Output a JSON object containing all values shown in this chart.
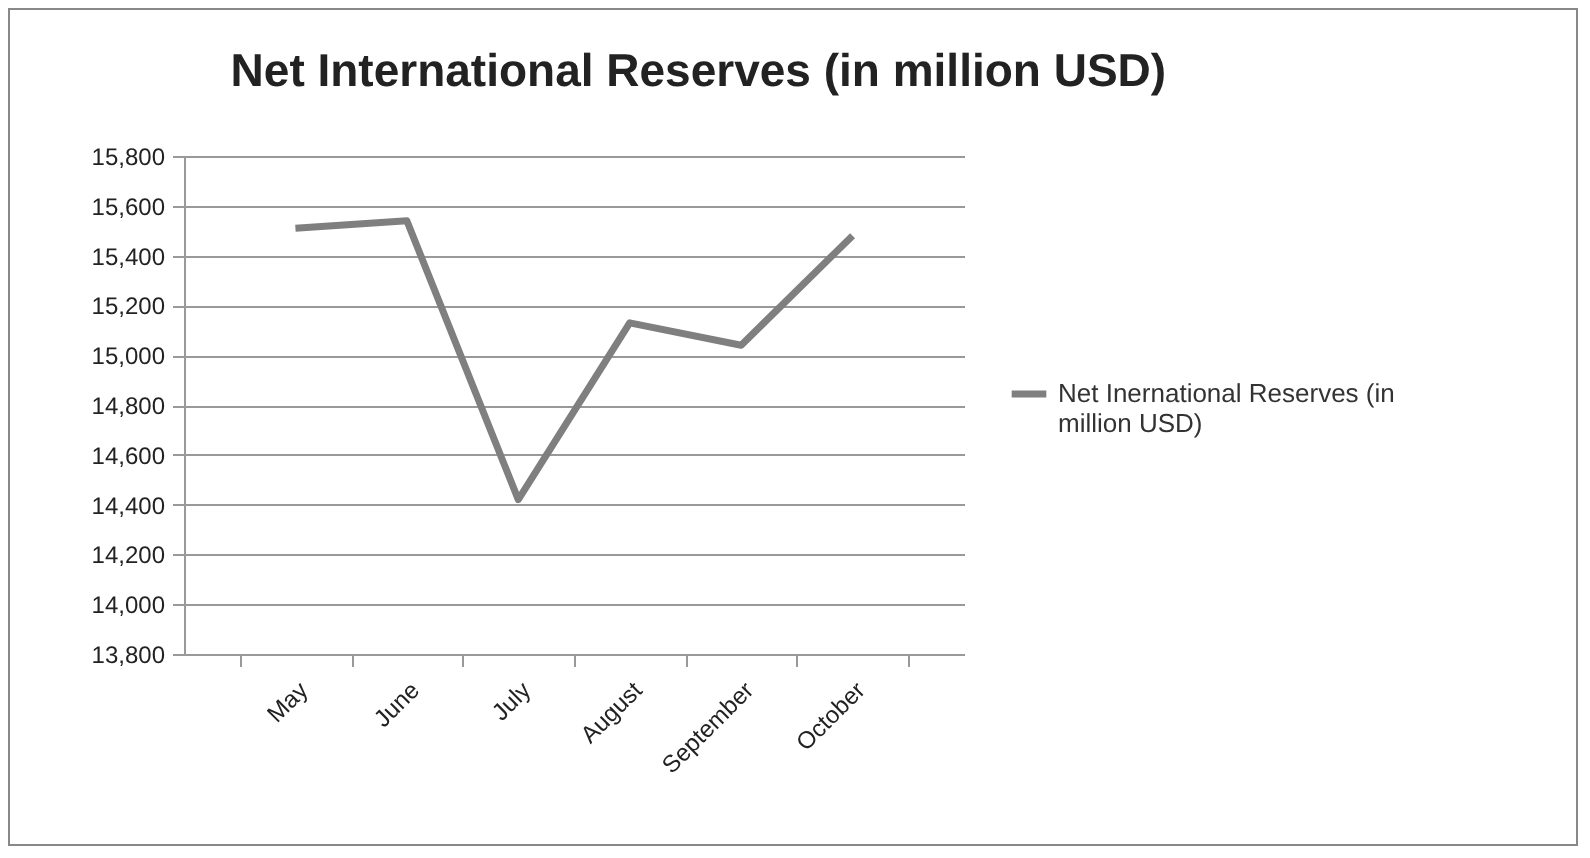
{
  "chart_data": {
    "type": "line",
    "title": "Net International Reserves (in million USD)",
    "categories": [
      "May",
      "June",
      "July",
      "August",
      "September",
      "October"
    ],
    "series": [
      {
        "name": "Net Inernational Reserves (in million USD)",
        "color": "#7f7f7f",
        "values": [
          15510,
          15540,
          14420,
          15130,
          15040,
          15480
        ]
      }
    ],
    "ylim": [
      13800,
      15800
    ],
    "yticks": [
      {
        "value": 13800,
        "label": "13,800"
      },
      {
        "value": 14000,
        "label": "14,000"
      },
      {
        "value": 14200,
        "label": "14,200"
      },
      {
        "value": 14400,
        "label": "14,400"
      },
      {
        "value": 14600,
        "label": "14,600"
      },
      {
        "value": 14800,
        "label": "14,800"
      },
      {
        "value": 15000,
        "label": "15,000"
      },
      {
        "value": 15200,
        "label": "15,200"
      },
      {
        "value": 15400,
        "label": "15,400"
      },
      {
        "value": 15600,
        "label": "15,600"
      },
      {
        "value": 15800,
        "label": "15,800"
      }
    ],
    "grid": "y",
    "legend": "right",
    "marker": "none",
    "line_style": "solid"
  }
}
